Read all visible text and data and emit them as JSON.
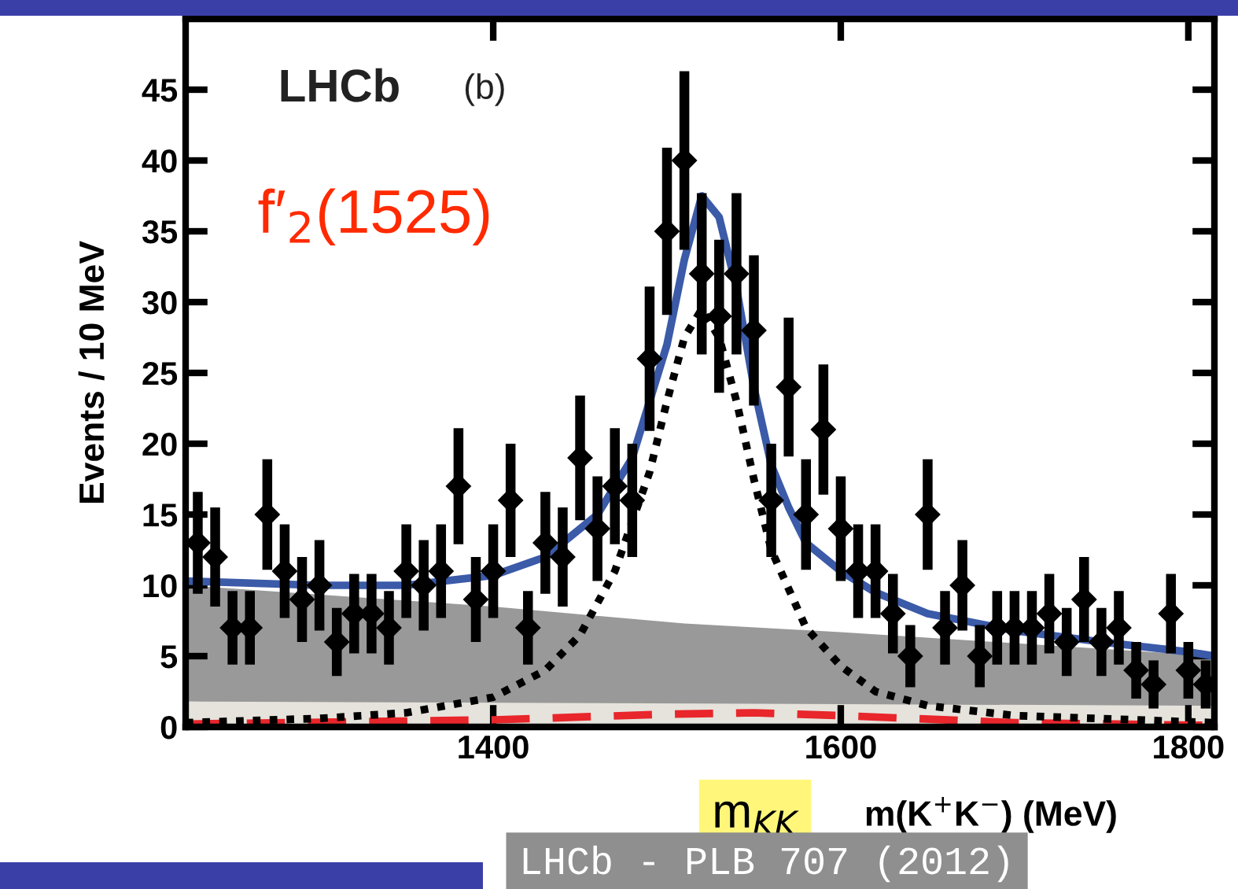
{
  "chart_data": {
    "type": "scatter",
    "ylabel": "Events / 10 MeV",
    "xlabel": "m(K$^{+}$K$^{−}$) (MeV)",
    "annotations": [
      "LHCb",
      "(b)",
      "f′$_{2}$(1525)",
      "m$_{KK}$",
      "LHCb - PLB 707 (2012)"
    ],
    "xlim": [
      1223,
      1815
    ],
    "xticks": [
      1400,
      1600,
      1800
    ],
    "ylim": [
      0,
      50
    ],
    "yticks": [
      0,
      5,
      10,
      15,
      20,
      25,
      30,
      35,
      40,
      45
    ],
    "grid": false,
    "legend": false,
    "series": [
      {
        "type": "area",
        "color": "#999999",
        "x": [
          1223,
          1400,
          1510,
          1600,
          1815
        ],
        "values": [
          10,
          8.5,
          7.3,
          6.7,
          5
        ]
      },
      {
        "type": "area",
        "color": "#e6e3dc",
        "x": [
          1223,
          1815
        ],
        "values": [
          1.8,
          1.5
        ]
      },
      {
        "type": "line",
        "color": "#e8262b",
        "line_style": "dashed",
        "x": [
          1223,
          1400,
          1500,
          1550,
          1600,
          1700,
          1815
        ],
        "values": [
          0.2,
          0.5,
          0.9,
          1.0,
          0.8,
          0.3,
          0.1
        ]
      },
      {
        "type": "line",
        "color": "#000000",
        "line_style": "dotted",
        "x": [
          1223,
          1300,
          1350,
          1400,
          1430,
          1450,
          1470,
          1490,
          1500,
          1510,
          1520,
          1530,
          1540,
          1550,
          1560,
          1580,
          1600,
          1620,
          1650,
          1700,
          1815
        ],
        "values": [
          0.3,
          0.6,
          1,
          2.1,
          4,
          6.5,
          11,
          18,
          23,
          27.5,
          29.5,
          27.5,
          23,
          17.5,
          12.5,
          7,
          4.3,
          2.5,
          1.5,
          0.8,
          0.3
        ]
      },
      {
        "type": "line",
        "color": "#3b5aa8",
        "line_style": "solid",
        "x": [
          1223,
          1300,
          1350,
          1400,
          1430,
          1460,
          1480,
          1500,
          1510,
          1520,
          1530,
          1540,
          1550,
          1560,
          1570,
          1580,
          1600,
          1620,
          1650,
          1700,
          1750,
          1800,
          1815
        ],
        "values": [
          10.3,
          10,
          10,
          10.7,
          12,
          15,
          19,
          27,
          33,
          37.5,
          36,
          31,
          24,
          18.5,
          15.5,
          13,
          11,
          9.5,
          8,
          6.8,
          6,
          5.3,
          5
        ]
      },
      {
        "color": "#000000",
        "marker": "diamond",
        "x": [
          1230,
          1240,
          1250,
          1260,
          1270,
          1280,
          1290,
          1300,
          1310,
          1320,
          1330,
          1340,
          1350,
          1360,
          1370,
          1380,
          1390,
          1400,
          1410,
          1420,
          1430,
          1440,
          1450,
          1460,
          1470,
          1480,
          1490,
          1500,
          1510,
          1520,
          1530,
          1540,
          1550,
          1560,
          1570,
          1580,
          1590,
          1600,
          1610,
          1620,
          1630,
          1640,
          1650,
          1660,
          1670,
          1680,
          1690,
          1700,
          1710,
          1720,
          1730,
          1740,
          1750,
          1760,
          1770,
          1780,
          1790,
          1800,
          1810
        ],
        "values": [
          13,
          12,
          7,
          7,
          15,
          11,
          9,
          10,
          6,
          8,
          8,
          7,
          11,
          10,
          11,
          17,
          9,
          11,
          16,
          7,
          13,
          12,
          19,
          14,
          17,
          16,
          26,
          35,
          40,
          32,
          29,
          32,
          28,
          16,
          24,
          15,
          21,
          14,
          11,
          11,
          8,
          5,
          15,
          7,
          10,
          5,
          7,
          7,
          7,
          8,
          6,
          9,
          6,
          7,
          4,
          3,
          8,
          4,
          3
        ],
        "errors": [
          3.6,
          3.5,
          2.6,
          2.6,
          3.9,
          3.3,
          3,
          3.2,
          2.4,
          2.8,
          2.8,
          2.6,
          3.3,
          3.2,
          3.3,
          4.1,
          3,
          3.3,
          4,
          2.6,
          3.6,
          3.5,
          4.4,
          3.7,
          4.1,
          4,
          5.1,
          5.9,
          6.3,
          5.7,
          5.4,
          5.7,
          5.3,
          4,
          4.9,
          3.9,
          4.6,
          3.7,
          3.3,
          3.3,
          2.8,
          2.2,
          3.9,
          2.6,
          3.2,
          2.2,
          2.6,
          2.6,
          2.6,
          2.8,
          2.4,
          3,
          2.4,
          2.6,
          2,
          1.7,
          2.8,
          2,
          1.7
        ]
      }
    ]
  }
}
